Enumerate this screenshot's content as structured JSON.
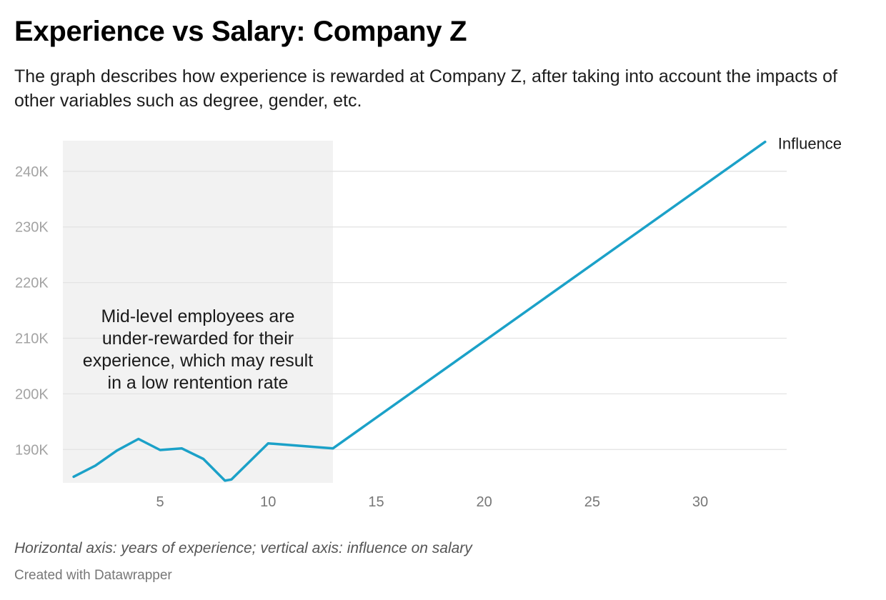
{
  "header": {
    "title": "Experience vs Salary: Company Z",
    "subtitle": "The graph describes how experience is rewarded at Company Z, after taking into account the impacts of other variables such as degree, gender, etc."
  },
  "footer": {
    "notes": "Horizontal axis: years of experience; vertical axis: influence on salary",
    "byline": "Created with Datawrapper"
  },
  "colors": {
    "line": "#1ba1c8",
    "highlight_band": "#f2f2f2",
    "grid": "#e3e3e3",
    "y_tick_text": "#a3a3a3",
    "x_tick_text": "#777777",
    "annotation_text": "#1a1a1a",
    "series_label": "#1a1a1a"
  },
  "chart_data": {
    "type": "line",
    "title": "Experience vs Salary: Company Z",
    "xlabel": "years of experience",
    "ylabel": "influence on salary",
    "xlim": [
      0.5,
      34
    ],
    "ylim": [
      184000,
      245500
    ],
    "x_ticks": [
      5,
      10,
      15,
      20,
      25,
      30
    ],
    "x_tick_labels": [
      "5",
      "10",
      "15",
      "20",
      "25",
      "30"
    ],
    "y_ticks": [
      190000,
      200000,
      210000,
      220000,
      230000,
      240000
    ],
    "y_tick_labels": [
      "190K",
      "200K",
      "210K",
      "220K",
      "230K",
      "240K"
    ],
    "grid": "horizontal",
    "series": [
      {
        "name": "Influence",
        "x": [
          1,
          2,
          3,
          4,
          5,
          6,
          7,
          8,
          8.3,
          10,
          13,
          33
        ],
        "y": [
          185100,
          187100,
          189800,
          191900,
          189900,
          190200,
          188300,
          184400,
          184600,
          191100,
          190200,
          245300
        ]
      }
    ],
    "highlight_range": [
      0.5,
      13
    ],
    "annotation": {
      "lines": [
        "Mid-level employees are",
        "under-rewarded for their",
        "experience, which may result",
        "in a low rentention rate"
      ]
    }
  }
}
